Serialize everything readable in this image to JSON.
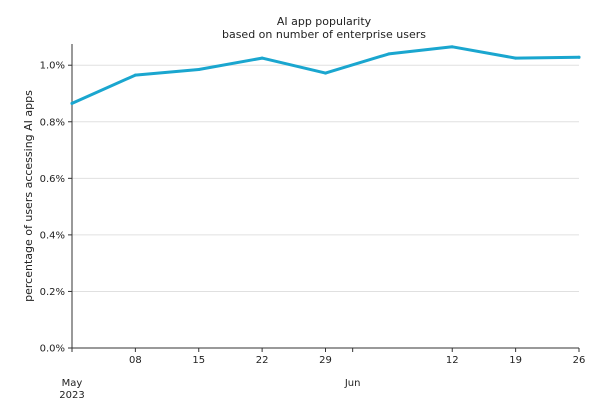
{
  "chart_data": {
    "type": "line",
    "title": "AI app popularity",
    "subtitle": "based on number of enterprise users",
    "xlabel": "",
    "ylabel": "percentage of users accessing AI apps",
    "ylim": [
      0,
      1.075
    ],
    "xlim": [
      "2023-05-01",
      "2023-06-26"
    ],
    "grid": "horizontal",
    "legend": "none",
    "line_color": "#1aa6cf",
    "y_ticks": [
      {
        "value": 0.0,
        "label": "0.0%"
      },
      {
        "value": 0.2,
        "label": "0.2%"
      },
      {
        "value": 0.4,
        "label": "0.4%"
      },
      {
        "value": 0.6,
        "label": "0.6%"
      },
      {
        "value": 0.8,
        "label": "0.8%"
      },
      {
        "value": 1.0,
        "label": "1.0%"
      }
    ],
    "x_ticks": [
      {
        "date": "2023-05-01",
        "label": "May\n2023"
      },
      {
        "date": "2023-05-08",
        "label": "08"
      },
      {
        "date": "2023-05-15",
        "label": "15"
      },
      {
        "date": "2023-05-22",
        "label": "22"
      },
      {
        "date": "2023-05-29",
        "label": "29"
      },
      {
        "date": "2023-06-01",
        "label": "Jun"
      },
      {
        "date": "2023-06-12",
        "label": "12"
      },
      {
        "date": "2023-06-19",
        "label": "19"
      },
      {
        "date": "2023-06-26",
        "label": "26"
      }
    ],
    "series": [
      {
        "x": [
          "2023-05-01",
          "2023-05-08",
          "2023-05-15",
          "2023-05-22",
          "2023-05-29",
          "2023-06-05",
          "2023-06-12",
          "2023-06-19",
          "2023-06-26"
        ],
        "values": [
          0.865,
          0.965,
          0.985,
          1.025,
          0.972,
          1.04,
          1.065,
          1.025,
          1.028
        ]
      }
    ]
  }
}
